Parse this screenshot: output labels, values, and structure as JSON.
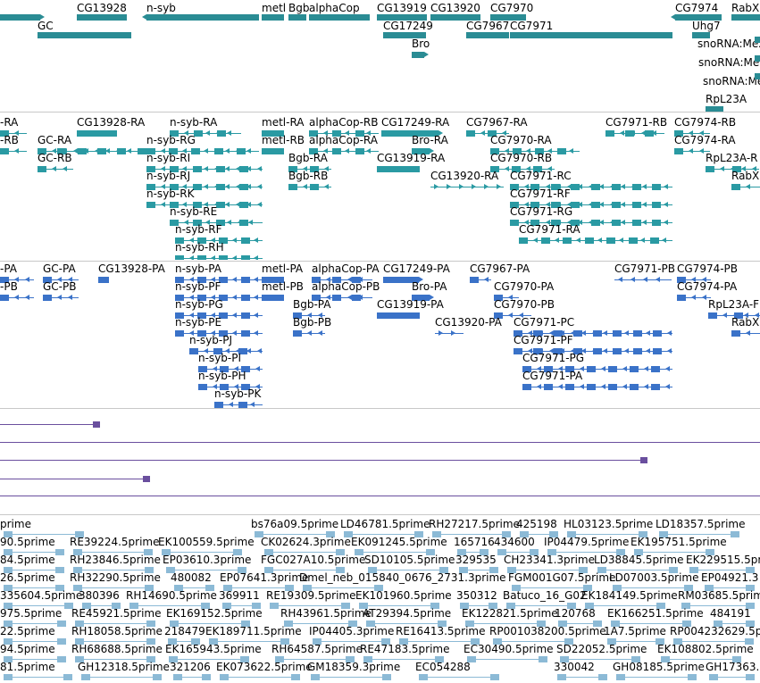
{
  "colors": {
    "gene": "#2a8c94",
    "transcript": "#2a9aa3",
    "protein": "#3a72c8",
    "blast": "#6a4f9e",
    "est": "#8cbad6",
    "separator": "#c8c8c8"
  },
  "tracks": {
    "genes": [
      "CG13928",
      "n-syb",
      "metl",
      "Bgb",
      "alphaCop",
      "CG13919",
      "CG13920",
      "CG7970",
      "CG7974",
      "RabX",
      "GC",
      "CG17249",
      "CG7967",
      "CG7971",
      "Uhg7",
      "Bro",
      "snoRNA:Me2",
      "snoRNA:Me",
      "snoRNA:Me",
      "RpL23A"
    ],
    "transcripts": [
      "-RA",
      "CG13928-RA",
      "n-syb-RA",
      "metl-RA",
      "alphaCop-RB",
      "CG17249-RA",
      "CG7967-RA",
      "CG7971-RB",
      "CG7974-RB",
      "-RB",
      "GC-RA",
      "n-syb-RG",
      "metl-RB",
      "alphaCop-RA",
      "Bro-RA",
      "CG7970-RA",
      "CG7974-RA",
      "GC-RB",
      "n-syb-RI",
      "Bgb-RA",
      "CG13919-RA",
      "CG7970-RB",
      "RpL23A-R",
      "n-syb-RJ",
      "Bgb-RB",
      "CG13920-RA",
      "CG7971-RC",
      "RabX",
      "n-syb-RK",
      "CG7971-RF",
      "n-syb-RE",
      "CG7971-RG",
      "n-syb-RF",
      "CG7971-RA",
      "n-syb-RH"
    ],
    "proteins": [
      "-PA",
      "GC-PA",
      "CG13928-PA",
      "n-syb-PA",
      "metl-PA",
      "alphaCop-PA",
      "CG17249-PA",
      "CG7967-PA",
      "CG7971-PB",
      "CG7974-PB",
      "-PB",
      "GC-PB",
      "n-syb-PF",
      "metl-PB",
      "alphaCop-PB",
      "Bro-PA",
      "CG7970-PA",
      "CG7974-PA",
      "n-syb-PG",
      "Bgb-PA",
      "CG13919-PA",
      "CG7970-PB",
      "RpL23A-F",
      "n-syb-PE",
      "Bgb-PB",
      "CG13920-PA",
      "CG7971-PC",
      "RabX",
      "n-syb-PJ",
      "CG7971-PF",
      "n-syb-PI",
      "CG7971-PG",
      "n-syb-PH",
      "CG7971-PA",
      "n-syb-PK"
    ],
    "ests": [
      "prime",
      "bs76a09.5prime",
      "LD46781.5prime",
      "RH27217.5prime",
      "425198",
      "HL03123.5prime",
      "LD18357.5prime",
      "90.5prime",
      "RE39224.5prime",
      "EK100559.5prime",
      "CK02624.3prime",
      "EK091245.5prime",
      "165716",
      "434600",
      "IP04479.5prime",
      "EK195751.5prime",
      "84.5prime",
      "RH23846.5prime",
      "EP03610.3prime",
      "FGC027A10.5prime",
      "SD10105.5prime",
      "329535",
      "CH23341.3prime",
      "LD38845.5prime",
      "EK229515.5pri",
      "26.5prime",
      "RH32290.5prime",
      "480082",
      "EP07641.3prime",
      "Dmel_neb_015840_0676_2731.3prime",
      "FGM001G07.5prime",
      "LD07003.5prime",
      "EP04921.3",
      "335604.5prime",
      "380396",
      "RH14690.5prime",
      "369911",
      "RE19309.5prime",
      "EK101960.5prime",
      "350312",
      "Batuco_16_G02",
      "EK184149.5prime",
      "RM03685.5prim",
      "975.5prime",
      "RE45921.5prime",
      "EK169152.5prime",
      "RH43961.5prime",
      "AT29394.5prime",
      "EK122821.5prime",
      "120768",
      "EK166251.5prime",
      "484191",
      "22.5prime",
      "RH18058.5prime",
      "218479",
      "EK189711.5prime",
      "IP04405.3prime",
      "RE16413.5prime",
      "RP001038200.5prime",
      "1A7.5prime",
      "RP004232629.5p",
      "94.5prime",
      "RH68688.5prime",
      "EK165943.5prime",
      "RH64587.5prime",
      "RE47183.5prime",
      "EC30490.5prime",
      "SD22052.5prime",
      "EK108802.5prime",
      "81.5prime",
      "GH12318.5prime",
      "321206",
      "EK073622.5prime",
      "GM18359.3prime",
      "EC054288",
      "330042",
      "GH08185.5prime",
      "GH17363."
    ]
  }
}
